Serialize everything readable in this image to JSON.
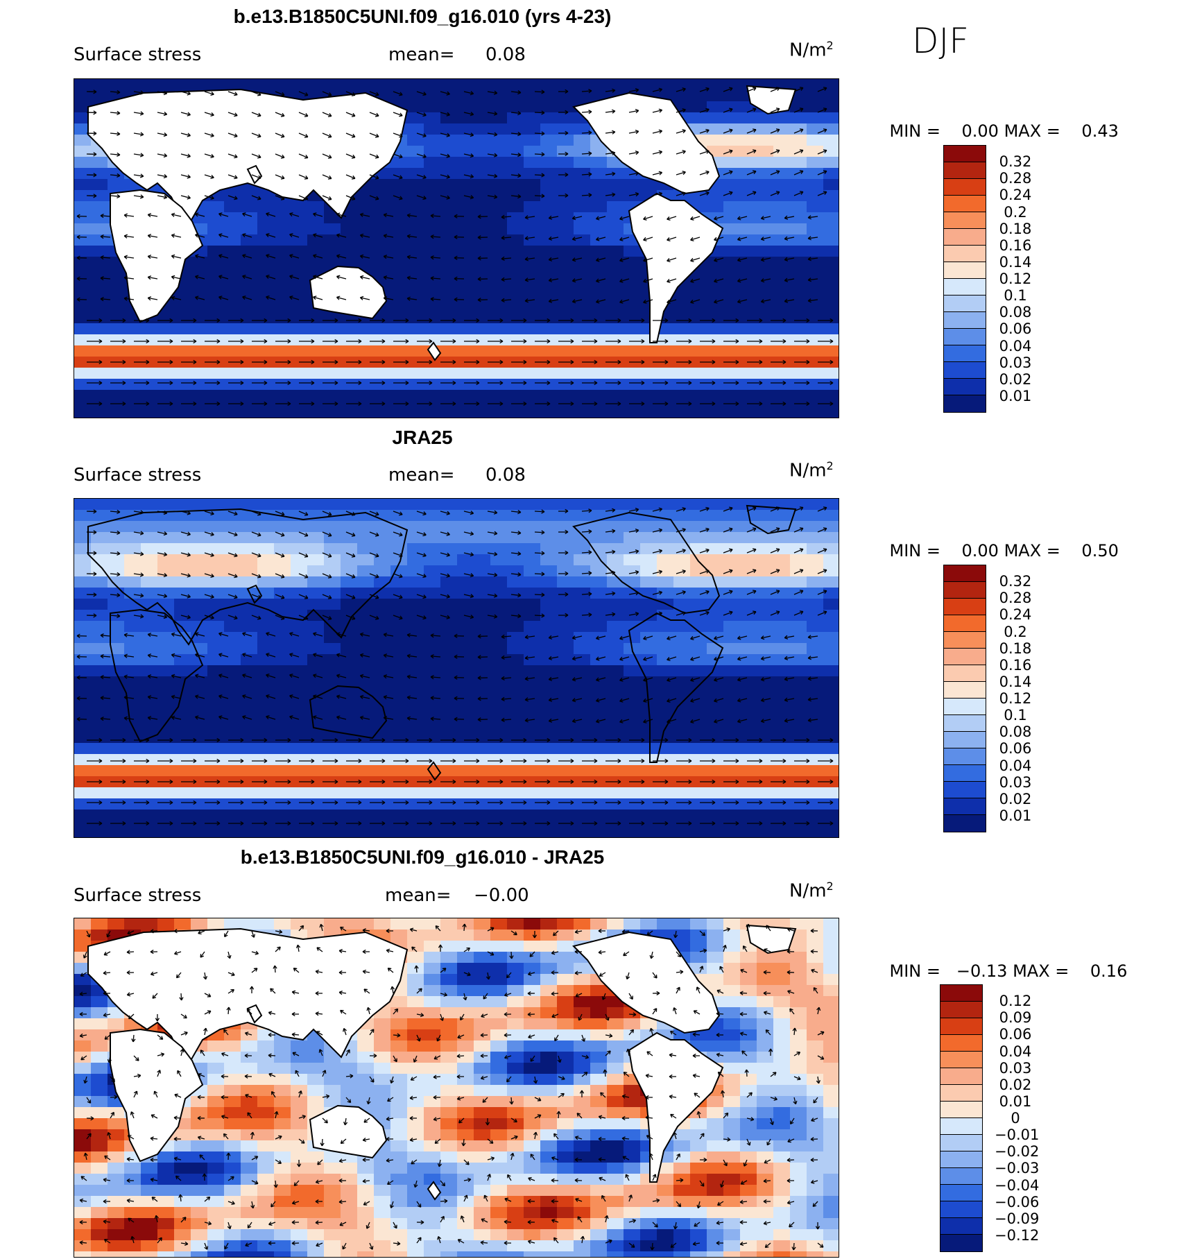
{
  "season": "DJF",
  "panels": [
    {
      "title": "b.e13.B1850C5UNI.f09_g16.010 (yrs 4-23)",
      "variable": "Surface stress",
      "mean_label": "mean=",
      "mean_value": "0.08",
      "units": "N/m",
      "units_sup": "2",
      "min_label": "MIN =",
      "min_value": "0.00",
      "max_label": "MAX =",
      "max_value": "0.43",
      "colorbar_labels": [
        "0.32",
        "0.28",
        "0.24",
        "0.2",
        "0.18",
        "0.16",
        "0.14",
        "0.12",
        "0.1",
        "0.08",
        "0.06",
        "0.04",
        "0.03",
        "0.02",
        "0.01"
      ],
      "colorbar_colors": [
        "#8b0a0a",
        "#b32510",
        "#d83f14",
        "#f26a2c",
        "#f78f5a",
        "#f8ac8c",
        "#fbcbb0",
        "#fbe6d3",
        "#d6e8fb",
        "#b2cdf5",
        "#8cb1f0",
        "#5d8ee8",
        "#336ce0",
        "#1d4cd0",
        "#0e2fab",
        "#061a7a"
      ],
      "map_style": "model"
    },
    {
      "title": "JRA25",
      "variable": "Surface stress",
      "mean_label": "mean=",
      "mean_value": "0.08",
      "units": "N/m",
      "units_sup": "2",
      "min_label": "MIN =",
      "min_value": "0.00",
      "max_label": "MAX =",
      "max_value": "0.50",
      "colorbar_labels": [
        "0.32",
        "0.28",
        "0.24",
        "0.2",
        "0.18",
        "0.16",
        "0.14",
        "0.12",
        "0.1",
        "0.08",
        "0.06",
        "0.04",
        "0.03",
        "0.02",
        "0.01"
      ],
      "colorbar_colors": [
        "#8b0a0a",
        "#b32510",
        "#d83f14",
        "#f26a2c",
        "#f78f5a",
        "#f8ac8c",
        "#fbcbb0",
        "#fbe6d3",
        "#d6e8fb",
        "#b2cdf5",
        "#8cb1f0",
        "#5d8ee8",
        "#336ce0",
        "#1d4cd0",
        "#0e2fab",
        "#061a7a"
      ],
      "map_style": "obs"
    },
    {
      "title": "b.e13.B1850C5UNI.f09_g16.010 - JRA25",
      "variable": "Surface stress",
      "mean_label": "mean=",
      "mean_value": "−0.00",
      "units": "N/m",
      "units_sup": "2",
      "min_label": "MIN =",
      "min_value": "−0.13",
      "max_label": "MAX =",
      "max_value": "0.16",
      "colorbar_labels": [
        "0.12",
        "0.09",
        "0.06",
        "0.04",
        "0.03",
        "0.02",
        "0.01",
        "0",
        "−0.01",
        "−0.02",
        "−0.03",
        "−0.04",
        "−0.06",
        "−0.09",
        "−0.12"
      ],
      "colorbar_colors": [
        "#8b0a0a",
        "#b32510",
        "#d83f14",
        "#f26a2c",
        "#f78f5a",
        "#f8ac8c",
        "#fbcbb0",
        "#fbe6d3",
        "#d6e8fb",
        "#b2cdf5",
        "#8cb1f0",
        "#5d8ee8",
        "#336ce0",
        "#1d4cd0",
        "#0e2fab",
        "#061a7a"
      ],
      "map_style": "diff"
    }
  ]
}
